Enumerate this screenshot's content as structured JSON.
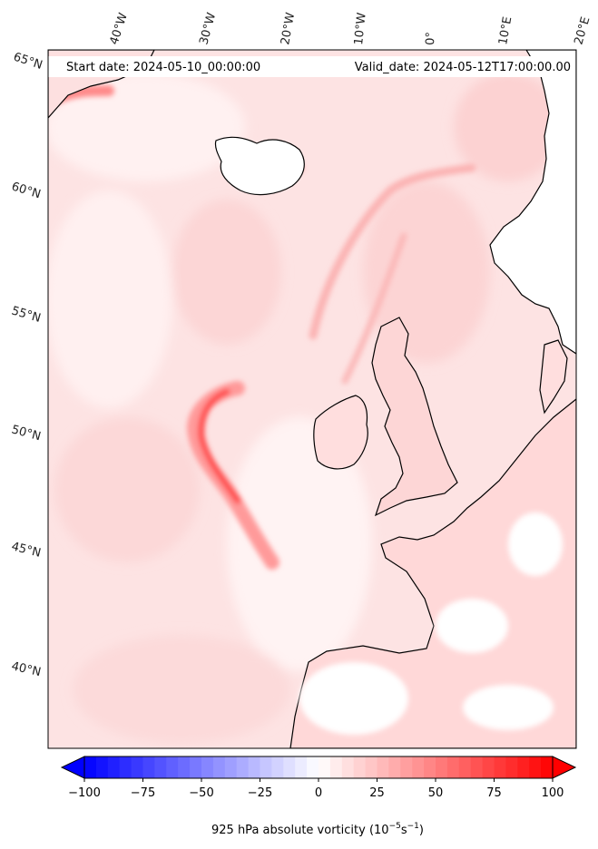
{
  "header": {
    "start_date": "Start date: 2024-05-10_00:00:00",
    "valid_date": "Valid_date: 2024-05-12T17:00:00.00"
  },
  "map": {
    "projection": "polar-stereographic",
    "longitude_labels": [
      "40°W",
      "30°W",
      "20°W",
      "10°W",
      "0°",
      "10°E",
      "20°E"
    ],
    "latitude_labels": [
      "65°N",
      "60°N",
      "55°N",
      "50°N",
      "45°N",
      "40°N"
    ],
    "field": "925 hPa absolute vorticity",
    "field_colors": {
      "background_ocean": "#fde3e3",
      "strong_positive": "#ff3030",
      "weak_positive": "#ffc9c9",
      "near_zero": "#ffffff",
      "negative": "#dfe3ff",
      "coastline": "#000000"
    }
  },
  "colorbar": {
    "label": "925 hPa absolute vorticity (10",
    "label_exponent": "−5",
    "label_unit": "s",
    "label_unit_exponent": "−1",
    "label_close": ")",
    "min": -100,
    "max": 100,
    "ticks": [
      "−100",
      "−75",
      "−50",
      "−25",
      "0",
      "25",
      "50",
      "75",
      "100"
    ],
    "tick_values": [
      -100,
      -75,
      -50,
      -25,
      0,
      25,
      50,
      75,
      100
    ],
    "levels": 40,
    "colormap": "bwr",
    "extend": "both",
    "color_low": "#0000ff",
    "color_mid": "#ffffff",
    "color_high": "#ff0000"
  }
}
